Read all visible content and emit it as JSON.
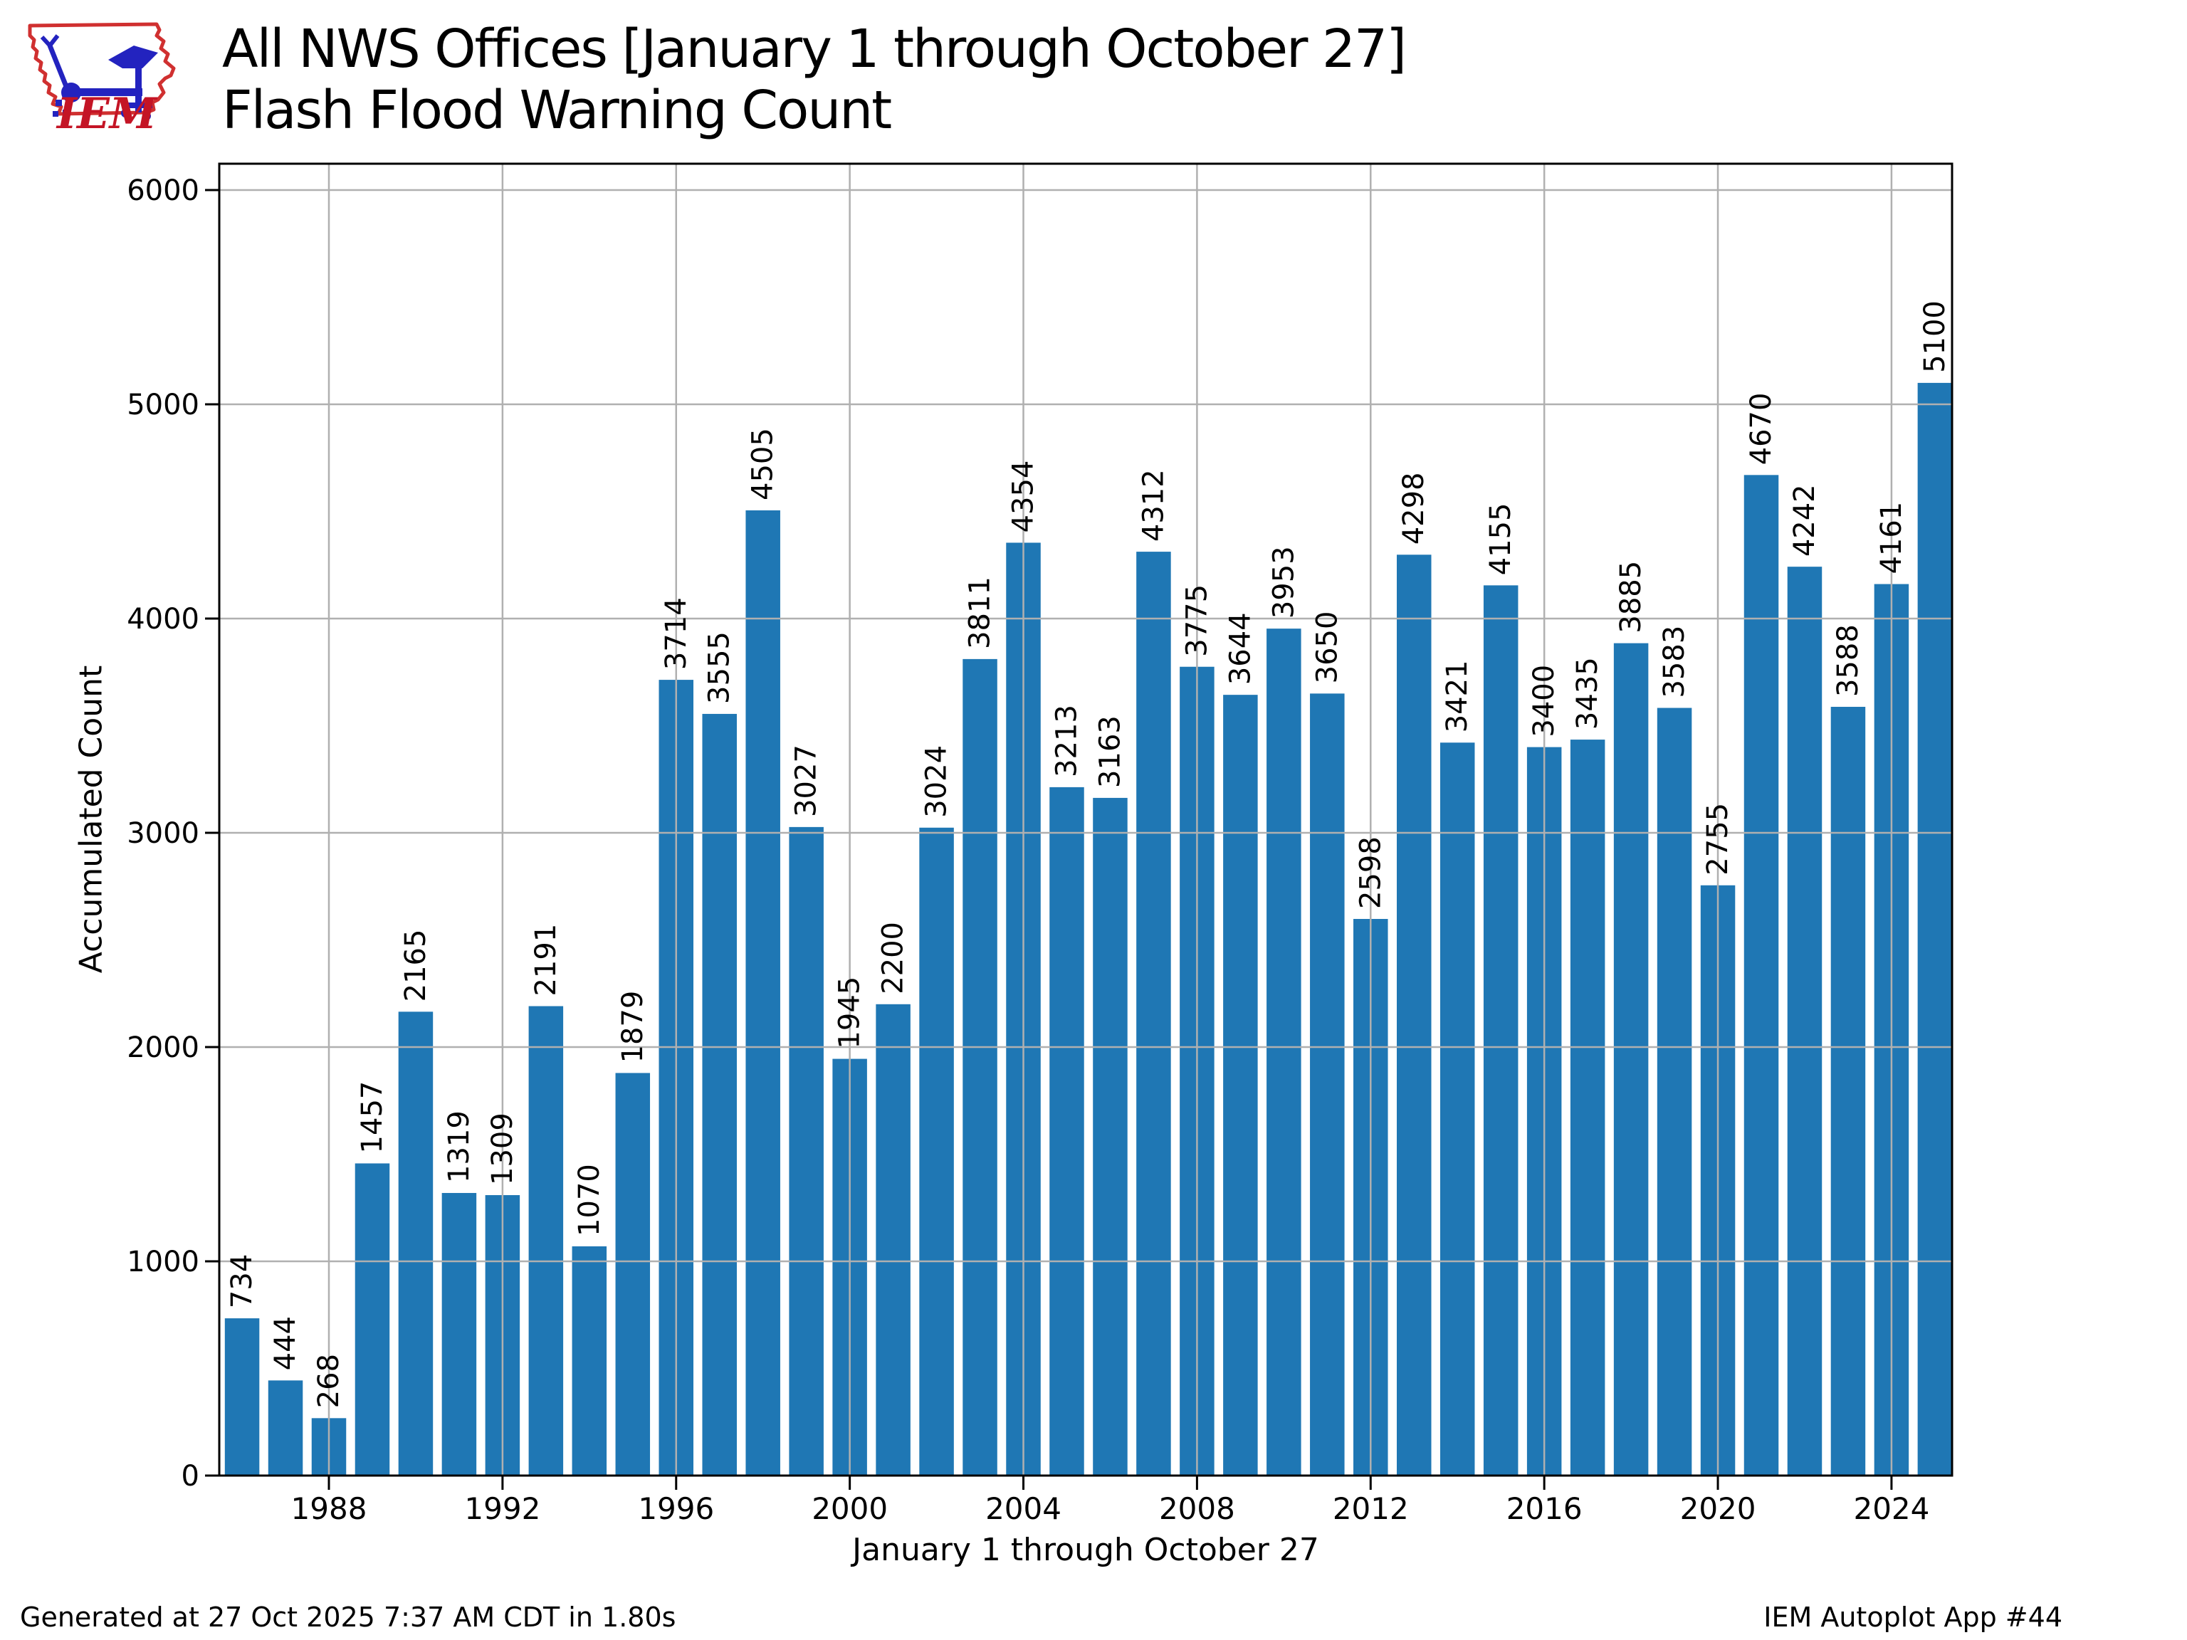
{
  "header": {
    "title_line1": "All NWS Offices [January 1 through October 27]",
    "title_line2": "Flash Flood Warning Count",
    "logo_text": "IEM"
  },
  "footer": {
    "generated": "Generated at 27 Oct 2025 7:37 AM CDT in 1.80s",
    "app": "IEM Autoplot App #44"
  },
  "chart_data": {
    "type": "bar",
    "title": "All NWS Offices [January 1 through October 27] Flash Flood Warning Count",
    "xlabel": "January 1 through October 27",
    "ylabel": "Accumulated Count",
    "x": [
      1986,
      1987,
      1988,
      1989,
      1990,
      1991,
      1992,
      1993,
      1994,
      1995,
      1996,
      1997,
      1998,
      1999,
      2000,
      2001,
      2002,
      2003,
      2004,
      2005,
      2006,
      2007,
      2008,
      2009,
      2010,
      2011,
      2012,
      2013,
      2014,
      2015,
      2016,
      2017,
      2018,
      2019,
      2020,
      2021,
      2022,
      2023,
      2024,
      2025
    ],
    "values": [
      734,
      444,
      268,
      1457,
      2165,
      1319,
      1309,
      2191,
      1070,
      1879,
      3714,
      3555,
      4505,
      3027,
      1945,
      2200,
      3024,
      3811,
      4354,
      3213,
      3163,
      4312,
      3775,
      3644,
      3953,
      3650,
      2598,
      4298,
      3421,
      4155,
      3400,
      3435,
      3885,
      3583,
      2755,
      4670,
      4242,
      3588,
      4161,
      5100
    ],
    "bar_labels_visible": true,
    "x_ticks": [
      1988,
      1992,
      1996,
      2000,
      2004,
      2008,
      2012,
      2016,
      2020,
      2024
    ],
    "y_ticks": [
      0,
      1000,
      2000,
      3000,
      4000,
      5000,
      6000
    ],
    "ylim": [
      0,
      6130
    ],
    "grid": true,
    "legend": "none",
    "bar_color": "#1f77b4",
    "grid_color": "#b0b0b0",
    "axis_color": "#000000"
  }
}
